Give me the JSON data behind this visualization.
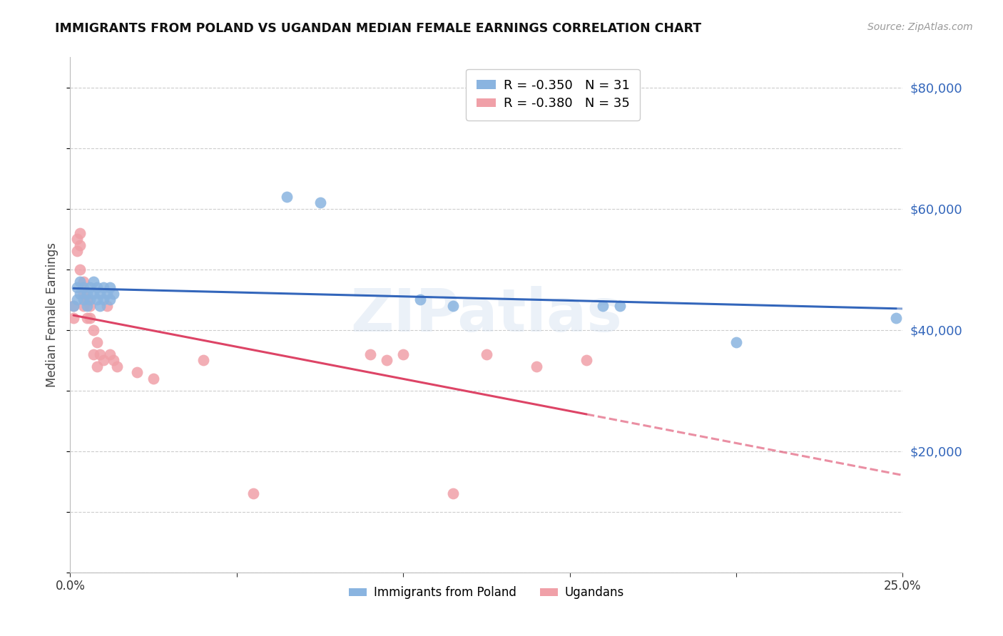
{
  "title": "IMMIGRANTS FROM POLAND VS UGANDAN MEDIAN FEMALE EARNINGS CORRELATION CHART",
  "source": "Source: ZipAtlas.com",
  "ylabel": "Median Female Earnings",
  "xlim": [
    0,
    0.25
  ],
  "ylim": [
    0,
    85000
  ],
  "xticks": [
    0.0,
    0.05,
    0.1,
    0.15,
    0.2,
    0.25
  ],
  "xtick_labels": [
    "0.0%",
    "",
    "",
    "",
    "",
    "25.0%"
  ],
  "ytick_vals": [
    0,
    20000,
    40000,
    60000,
    80000
  ],
  "ytick_labels": [
    "",
    "$20,000",
    "$40,000",
    "$60,000",
    "$80,000"
  ],
  "blue_color": "#8ab4e0",
  "pink_color": "#f0a0a8",
  "blue_line_color": "#3366bb",
  "pink_line_color": "#dd4466",
  "poland_x": [
    0.001,
    0.002,
    0.002,
    0.003,
    0.003,
    0.004,
    0.004,
    0.005,
    0.005,
    0.006,
    0.006,
    0.007,
    0.007,
    0.008,
    0.008,
    0.009,
    0.009,
    0.01,
    0.01,
    0.011,
    0.012,
    0.012,
    0.013,
    0.065,
    0.075,
    0.105,
    0.115,
    0.16,
    0.165,
    0.2,
    0.248
  ],
  "poland_y": [
    44000,
    47000,
    45000,
    46000,
    48000,
    45000,
    47000,
    44000,
    46000,
    47000,
    45000,
    46000,
    48000,
    47000,
    45000,
    46000,
    44000,
    45000,
    47000,
    46000,
    47000,
    45000,
    46000,
    62000,
    61000,
    45000,
    44000,
    44000,
    44000,
    38000,
    42000
  ],
  "uganda_x": [
    0.001,
    0.001,
    0.002,
    0.002,
    0.003,
    0.003,
    0.003,
    0.004,
    0.004,
    0.004,
    0.005,
    0.005,
    0.006,
    0.006,
    0.007,
    0.007,
    0.008,
    0.008,
    0.009,
    0.01,
    0.011,
    0.012,
    0.013,
    0.014,
    0.02,
    0.025,
    0.04,
    0.055,
    0.09,
    0.095,
    0.1,
    0.115,
    0.125,
    0.14,
    0.155
  ],
  "uganda_y": [
    44000,
    42000,
    55000,
    53000,
    56000,
    54000,
    50000,
    48000,
    46000,
    44000,
    45000,
    42000,
    44000,
    42000,
    40000,
    36000,
    38000,
    34000,
    36000,
    35000,
    44000,
    36000,
    35000,
    34000,
    33000,
    32000,
    35000,
    13000,
    36000,
    35000,
    36000,
    13000,
    36000,
    34000,
    35000
  ],
  "watermark": "ZIPatlas",
  "background_color": "#ffffff",
  "grid_color": "#cccccc"
}
